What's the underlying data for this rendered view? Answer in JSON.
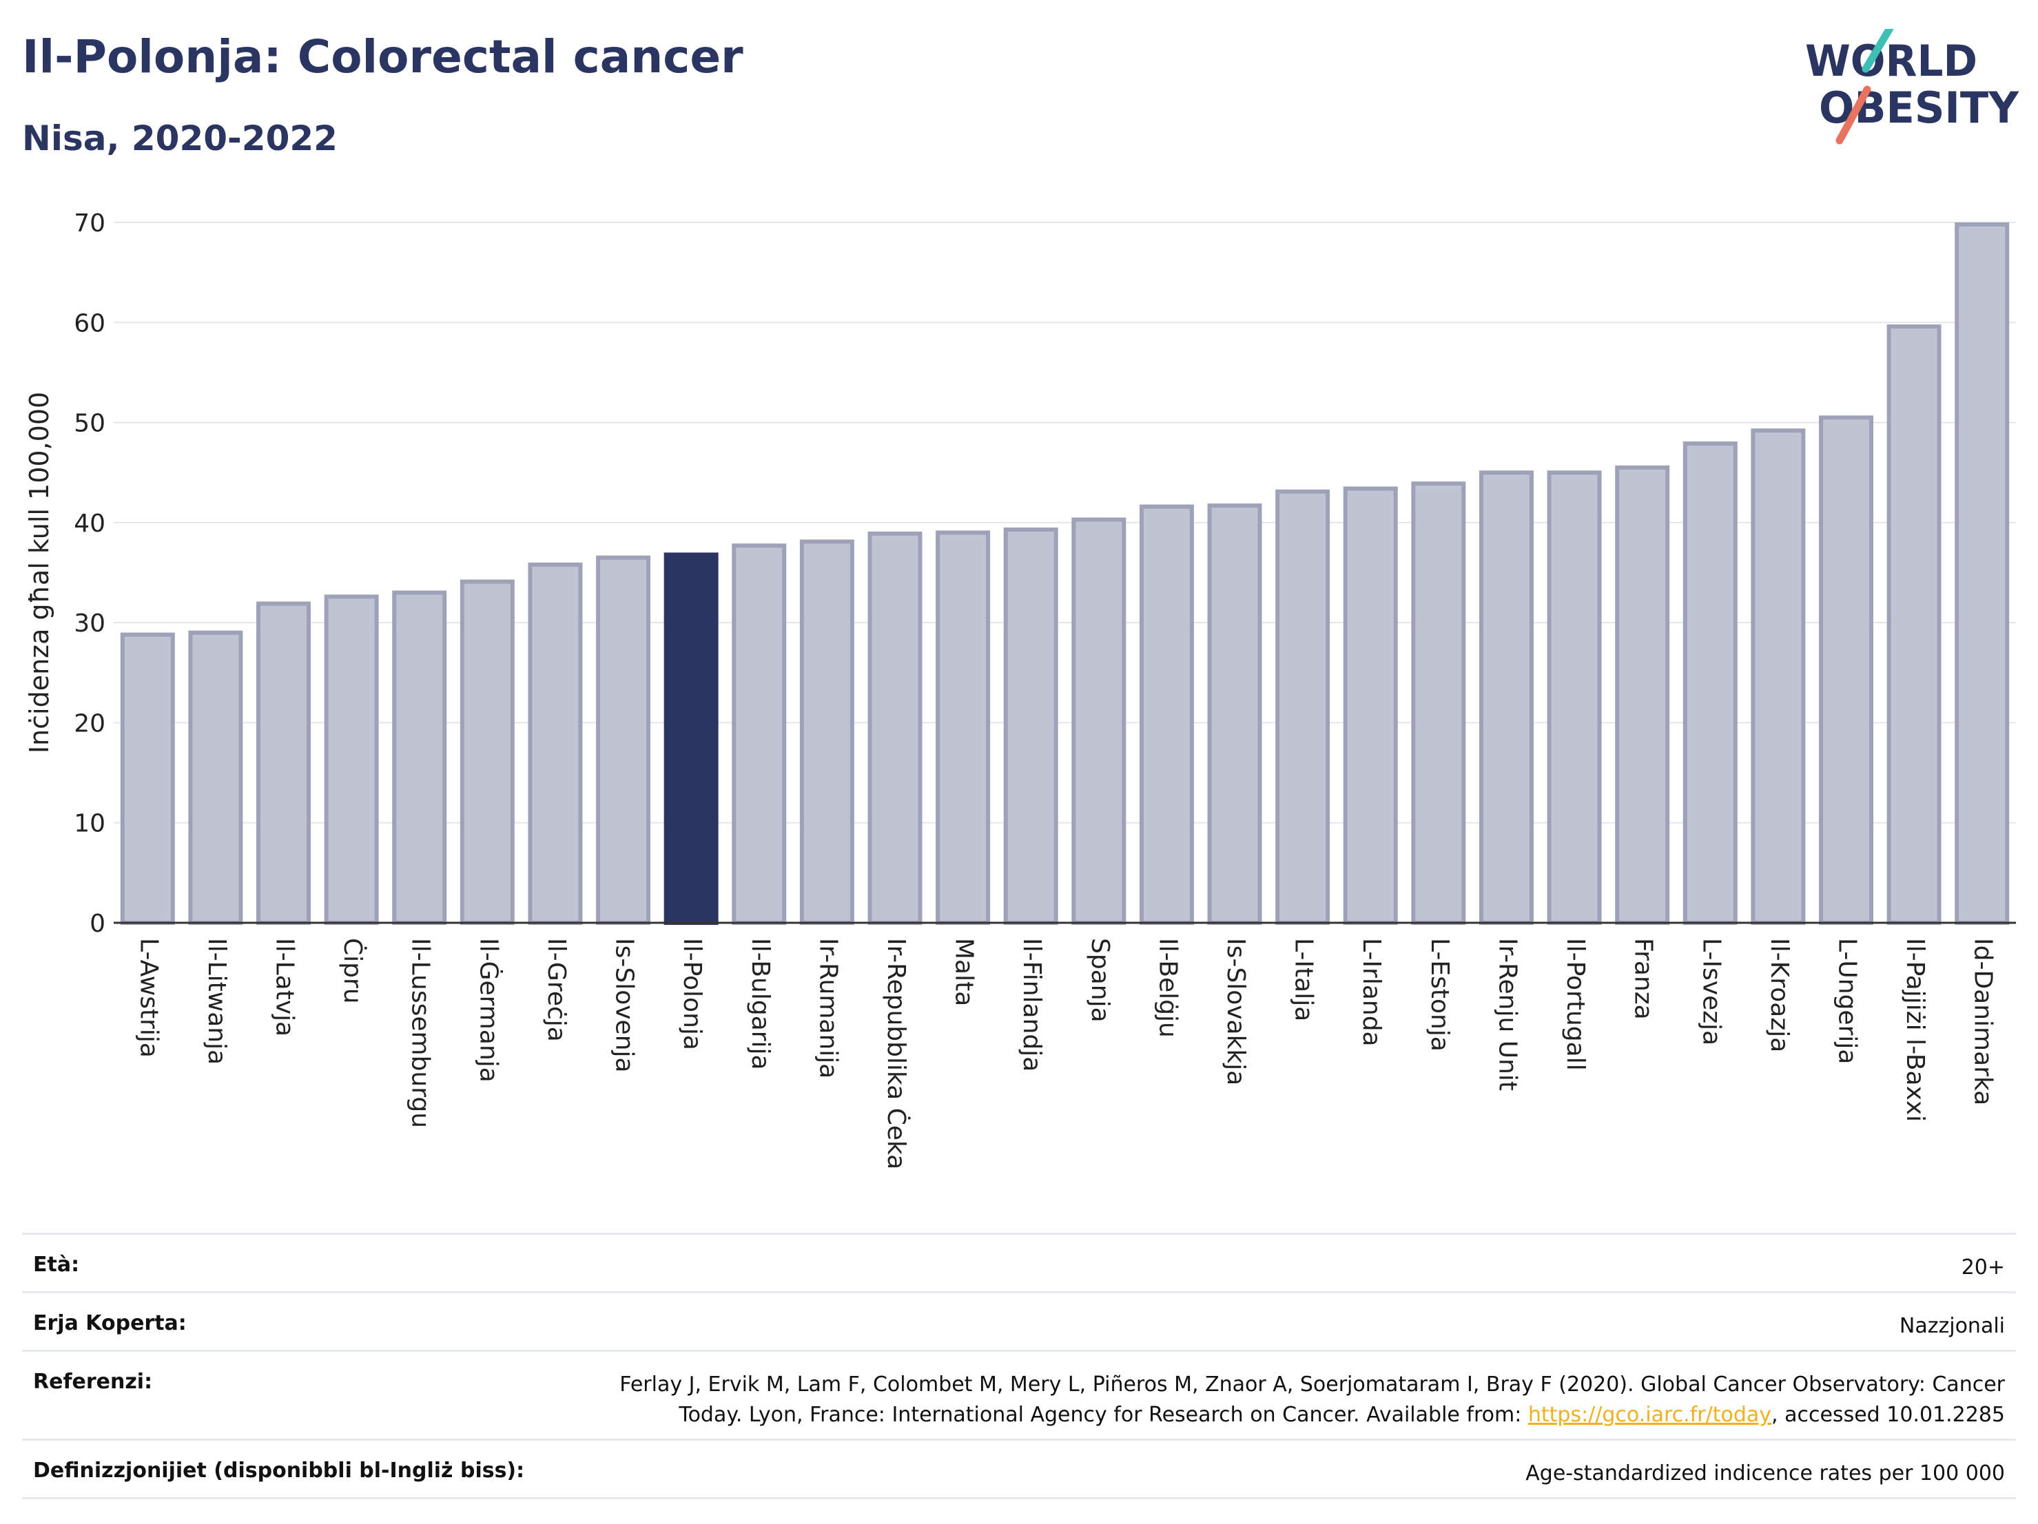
{
  "header": {
    "title": "Il-Polonja: Colorectal cancer",
    "subtitle": "Nisa, 2020-2022"
  },
  "logo": {
    "line1": "WORLD",
    "line2": "OBESITY",
    "slash_colors": [
      "#3dbfb5",
      "#e8735f"
    ]
  },
  "colors": {
    "bar_default": "#c0c4d2",
    "bar_border": "#9da2b9",
    "bar_highlight": "#2b3562",
    "text": "#2b3562"
  },
  "chart_data": {
    "type": "bar",
    "ylabel": "Inċidenza għal kull 100,000",
    "ylim": [
      0,
      70
    ],
    "yticks": [
      0,
      10,
      20,
      30,
      40,
      50,
      60,
      70
    ],
    "grid": true,
    "highlight": "Il-Polonja",
    "categories": [
      "L-Awstrija",
      "Il-Litwanja",
      "Il-Latvja",
      "Ċipru",
      "Il-Lussemburgu",
      "Il-Ġermanja",
      "Il-Greċja",
      "Is-Slovenja",
      "Il-Polonja",
      "Il-Bulgarija",
      "Ir-Rumanija",
      "Ir-Repubblika Ċeka",
      "Malta",
      "Il-Finlandja",
      "Spanja",
      "Il-Belġju",
      "Is-Slovakkja",
      "L-Italja",
      "L-Irlanda",
      "L-Estonja",
      "Ir-Renju Unit",
      "Il-Portugall",
      "Franza",
      "L-Isvezja",
      "Il-Kroazja",
      "L-Ungerija",
      "Il-Pajjiżi l-Baxxi",
      "Id-Danimarka"
    ],
    "values": [
      28.8,
      29.0,
      31.9,
      32.6,
      33.0,
      34.1,
      35.8,
      36.5,
      36.8,
      37.7,
      38.1,
      38.9,
      39.0,
      39.3,
      40.3,
      41.6,
      41.7,
      43.1,
      43.4,
      43.9,
      45.0,
      45.0,
      45.5,
      47.9,
      49.2,
      50.5,
      59.6,
      69.8
    ]
  },
  "info": [
    {
      "label": "Età:",
      "value": "20+"
    },
    {
      "label": "Erja Koperta:",
      "value": "Nazzjonali"
    },
    {
      "label": "Referenzi:",
      "value_line1": "Ferlay J, Ervik M, Lam F, Colombet M, Mery L, Piñeros M, Znaor A, Soerjomataram I, Bray F (2020). Global Cancer Observatory: Cancer",
      "value_line2_pre": "Today. Lyon, France: International Agency for Research on Cancer. Available from: ",
      "link": "https://gco.iarc.fr/today",
      "value_line2_post": ", accessed 10.01.2285"
    },
    {
      "label": "Definizzjonijiet (disponibbli bl-Ingliż biss):",
      "value": "Age-standardized indicence rates per 100 000"
    }
  ]
}
